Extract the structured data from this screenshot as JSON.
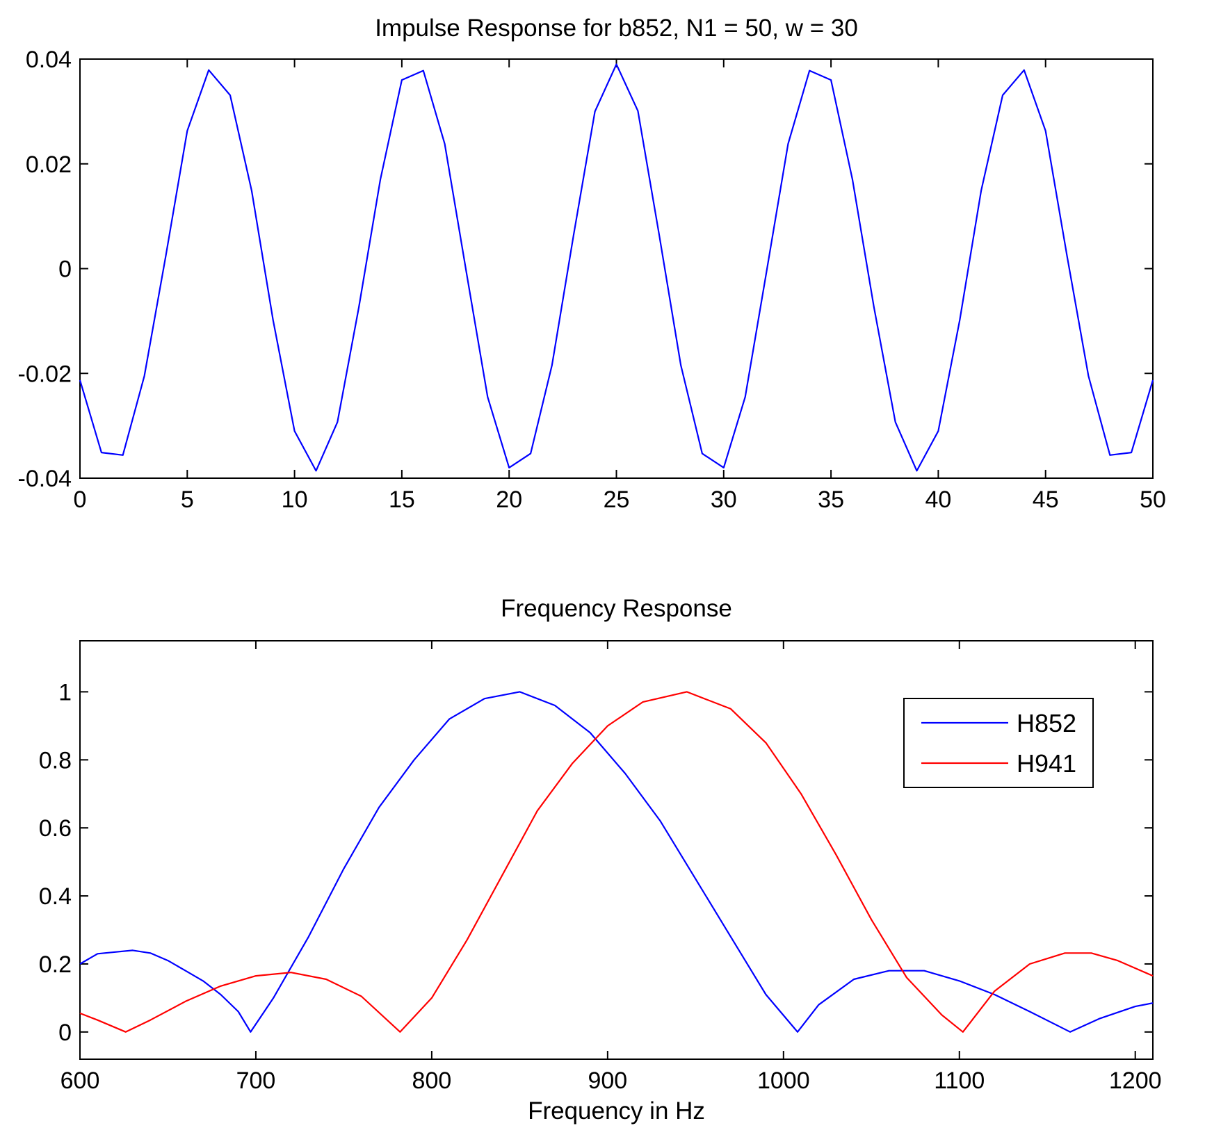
{
  "chart_data": [
    {
      "type": "line",
      "title": "Impulse Response for b852, N1 = 50, w = 30",
      "xlabel": "",
      "ylabel": "",
      "xlim": [
        0,
        50
      ],
      "ylim": [
        -0.04,
        0.04
      ],
      "x_ticks": [
        0,
        5,
        10,
        15,
        20,
        25,
        30,
        35,
        40,
        45,
        50
      ],
      "x_tick_labels": [
        "0",
        "5",
        "10",
        "15",
        "20",
        "25",
        "30",
        "35",
        "40",
        "45",
        "50"
      ],
      "y_ticks": [
        -0.04,
        -0.02,
        0,
        0.02,
        0.04
      ],
      "y_tick_labels": [
        "-0.04",
        "-0.02",
        "0",
        "0.02",
        "0.04"
      ],
      "grid": false,
      "series": [
        {
          "color": "#0000ff",
          "x": [
            0,
            1,
            2,
            3,
            4,
            5,
            6,
            7,
            8,
            9,
            10,
            11,
            12,
            13,
            14,
            15,
            16,
            17,
            18,
            19,
            20,
            21,
            22,
            23,
            24,
            25,
            26,
            27,
            28,
            29,
            30,
            31,
            32,
            33,
            34,
            35,
            36,
            37,
            38,
            39,
            40,
            41,
            42,
            43,
            44,
            45,
            46,
            47,
            48,
            49,
            50
          ],
          "y": [
            -0.0213,
            -0.0351,
            -0.0356,
            -0.0205,
            0.0024,
            0.0263,
            0.0379,
            0.0331,
            0.0149,
            -0.0098,
            -0.031,
            -0.0386,
            -0.0293,
            -0.0073,
            0.017,
            0.036,
            0.0378,
            0.0238,
            -0.0005,
            -0.0245,
            -0.038,
            -0.0353,
            -0.0184,
            0.0063,
            0.03,
            0.039,
            0.0301,
            0.0063,
            -0.0184,
            -0.0353,
            -0.038,
            -0.0245,
            -0.0005,
            0.0238,
            0.0378,
            0.036,
            0.017,
            -0.0073,
            -0.0293,
            -0.0386,
            -0.031,
            -0.0098,
            0.0149,
            0.0331,
            0.0379,
            0.0263,
            0.0024,
            -0.0205,
            -0.0356,
            -0.0351,
            -0.0213
          ]
        }
      ]
    },
    {
      "type": "line",
      "title": "Frequency Response",
      "xlabel": "Frequency in Hz",
      "ylabel": "",
      "xlim": [
        600,
        1210
      ],
      "ylim": [
        -0.08,
        1.15
      ],
      "x_ticks": [
        600,
        700,
        800,
        900,
        1000,
        1100,
        1200
      ],
      "x_tick_labels": [
        "600",
        "700",
        "800",
        "900",
        "1000",
        "1100",
        "1200"
      ],
      "y_ticks": [
        0,
        0.2,
        0.4,
        0.6,
        0.8,
        1
      ],
      "y_tick_labels": [
        "0",
        "0.2",
        "0.4",
        "0.6",
        "0.8",
        "1"
      ],
      "grid": false,
      "legend": {
        "position": "top-right",
        "entries": [
          "H852",
          "H941"
        ]
      },
      "series": [
        {
          "name": "H852",
          "color": "#0000ff",
          "x": [
            600,
            610,
            620,
            630,
            640,
            650,
            660,
            670,
            680,
            690,
            697,
            710,
            730,
            750,
            770,
            790,
            810,
            830,
            850,
            870,
            890,
            910,
            930,
            950,
            970,
            990,
            1008,
            1020,
            1040,
            1060,
            1080,
            1100,
            1120,
            1140,
            1163,
            1180,
            1200,
            1210
          ],
          "y": [
            0.2,
            0.23,
            0.235,
            0.24,
            0.232,
            0.21,
            0.18,
            0.15,
            0.11,
            0.06,
            0.0,
            0.1,
            0.28,
            0.48,
            0.66,
            0.8,
            0.92,
            0.98,
            1.0,
            0.96,
            0.88,
            0.76,
            0.62,
            0.45,
            0.28,
            0.11,
            0.0,
            0.08,
            0.155,
            0.18,
            0.18,
            0.15,
            0.11,
            0.06,
            0.0,
            0.04,
            0.075,
            0.085
          ]
        },
        {
          "name": "H941",
          "color": "#ff0000",
          "x": [
            600,
            610,
            626,
            640,
            660,
            680,
            700,
            720,
            740,
            760,
            782,
            800,
            820,
            840,
            860,
            880,
            900,
            920,
            945,
            970,
            990,
            1010,
            1030,
            1050,
            1070,
            1090,
            1102,
            1120,
            1140,
            1160,
            1175,
            1190,
            1210
          ],
          "y": [
            0.055,
            0.035,
            0.0,
            0.035,
            0.09,
            0.135,
            0.165,
            0.175,
            0.155,
            0.105,
            0.0,
            0.1,
            0.27,
            0.46,
            0.65,
            0.79,
            0.9,
            0.97,
            1.0,
            0.95,
            0.85,
            0.7,
            0.52,
            0.33,
            0.16,
            0.05,
            0.0,
            0.12,
            0.2,
            0.232,
            0.232,
            0.21,
            0.165
          ]
        }
      ]
    }
  ]
}
